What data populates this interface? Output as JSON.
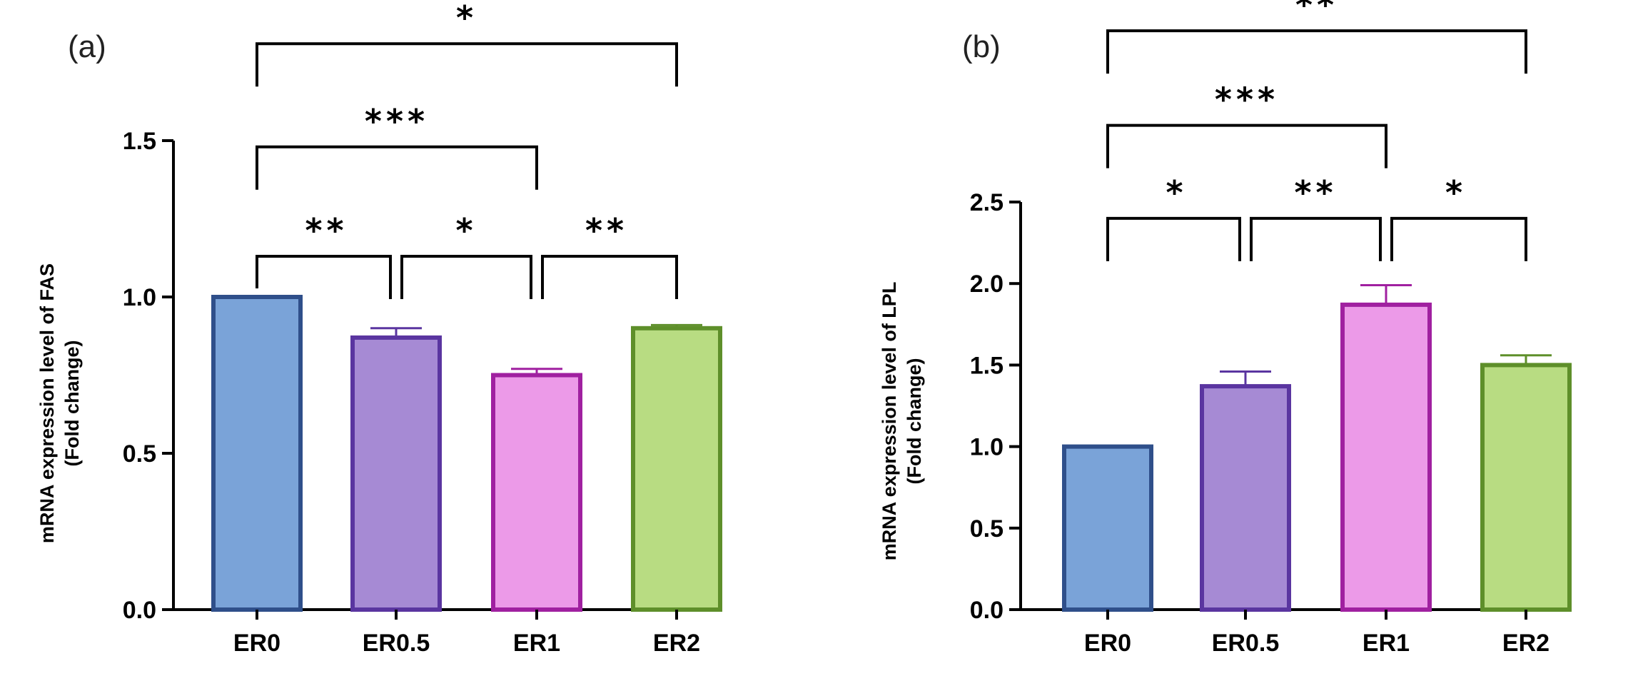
{
  "chart_data": [
    {
      "type": "bar",
      "panel_label": "(a)",
      "categories": [
        "ER0",
        "ER0.5",
        "ER1",
        "ER2"
      ],
      "values": [
        1.0,
        0.87,
        0.75,
        0.9
      ],
      "errors": [
        0.0,
        0.03,
        0.02,
        0.01
      ],
      "ylabel_line1": "mRNA expression level of FAS",
      "ylabel_line2": "(Fold change)",
      "ylim": [
        0,
        1.5
      ],
      "yticks": [
        0.0,
        0.5,
        1.0,
        1.5
      ],
      "ytick_labels": [
        "0.0",
        "0.5",
        "1.0",
        "1.5"
      ],
      "colors": {
        "fill": [
          "#7aa3d8",
          "#a68ad4",
          "#ec9ae8",
          "#b8dc82"
        ],
        "edge": [
          "#2f4f8a",
          "#5a35a0",
          "#a020a0",
          "#5e8f2a"
        ]
      },
      "significance": [
        {
          "from": 0,
          "to": 1,
          "label": "**",
          "level": 1.13
        },
        {
          "from": 1,
          "to": 2,
          "label": "*",
          "level": 1.13
        },
        {
          "from": 2,
          "to": 3,
          "label": "**",
          "level": 1.13
        },
        {
          "from": 0,
          "to": 2,
          "label": "***",
          "level": 1.48
        },
        {
          "from": 0,
          "to": 3,
          "label": "*",
          "level": 1.81
        }
      ]
    },
    {
      "type": "bar",
      "panel_label": "(b)",
      "categories": [
        "ER0",
        "ER0.5",
        "ER1",
        "ER2"
      ],
      "values": [
        1.0,
        1.37,
        1.87,
        1.5
      ],
      "errors": [
        0.0,
        0.09,
        0.12,
        0.06
      ],
      "ylabel_line1": "mRNA expression level of LPL",
      "ylabel_line2": "(Fold change)",
      "ylim": [
        0,
        2.5
      ],
      "yticks": [
        0.0,
        0.5,
        1.0,
        1.5,
        2.0,
        2.5
      ],
      "ytick_labels": [
        "0.0",
        "0.5",
        "1.0",
        "1.5",
        "2.0",
        "2.5"
      ],
      "colors": {
        "fill": [
          "#7aa3d8",
          "#a68ad4",
          "#ec9ae8",
          "#b8dc82"
        ],
        "edge": [
          "#2f4f8a",
          "#5a35a0",
          "#a020a0",
          "#5e8f2a"
        ]
      },
      "significance": [
        {
          "from": 0,
          "to": 1,
          "label": "*",
          "level": 2.4
        },
        {
          "from": 1,
          "to": 2,
          "label": "**",
          "level": 2.4
        },
        {
          "from": 2,
          "to": 3,
          "label": "*",
          "level": 2.4
        },
        {
          "from": 0,
          "to": 2,
          "label": "***",
          "level": 2.97
        },
        {
          "from": 0,
          "to": 3,
          "label": "**",
          "level": 3.55
        }
      ]
    }
  ]
}
